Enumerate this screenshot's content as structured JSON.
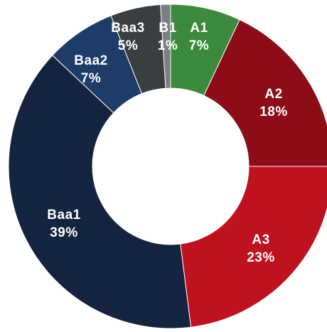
{
  "chart_data": {
    "type": "donut",
    "categories": [
      "A1",
      "A2",
      "A3",
      "Baa1",
      "Baa2",
      "Baa3",
      "B1"
    ],
    "values": [
      7,
      18,
      23,
      39,
      7,
      5,
      1
    ],
    "value_labels": [
      "7%",
      "18%",
      "23%",
      "39%",
      "7%",
      "5%",
      "1%"
    ],
    "colors": [
      "#3b8a3e",
      "#8c0c17",
      "#c0111f",
      "#14233f",
      "#1e3c68",
      "#3a3e40",
      "#7b7f81"
    ]
  }
}
